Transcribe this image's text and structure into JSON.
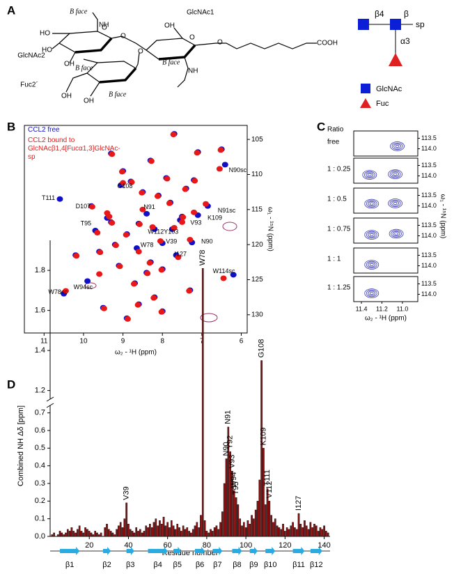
{
  "panel_labels": [
    "A",
    "B",
    "C",
    "D"
  ],
  "structure": {
    "residues": [
      "GlcNAc1",
      "GlcNAc2",
      "Fuc2´"
    ],
    "faces": [
      "B face",
      "B face",
      "B face",
      "B face"
    ],
    "atoms": [
      "HO",
      "HO",
      "OH",
      "OH",
      "OH",
      "OH",
      "O",
      "O",
      "O",
      "O",
      "O",
      "NH",
      "NH",
      "COOH"
    ]
  },
  "glycan": {
    "links": [
      "β4",
      "β",
      "α3"
    ],
    "spacer": "sp",
    "legend": [
      "GlcNAc",
      "Fuc"
    ]
  },
  "chart_data": [
    {
      "type": "scatter",
      "xlabel": "ω₂ - ¹H (ppm)",
      "ylabel": "ω₁ - ¹⁵N (ppm)",
      "xlim": [
        11.5,
        5.85
      ],
      "ylim": [
        103,
        132.6
      ],
      "xticks": [
        11,
        10,
        9,
        8,
        7,
        6
      ],
      "yticks": [
        105,
        110,
        115,
        120,
        125,
        130
      ],
      "series": [
        {
          "name": "CCL2 free",
          "color": "#1010c8",
          "x": [
            7.7,
            7.1,
            6.5,
            6.41,
            10.6,
            9.05,
            8.4,
            6.85,
            7.1,
            7.55,
            8.2,
            7.75,
            7.25,
            9.4,
            9.7,
            8.65,
            8.0,
            7.65,
            6.2,
            9.9,
            10.5,
            9.3,
            9.0,
            8.8,
            8.5,
            8.3,
            8.1,
            7.9,
            7.4,
            7.2,
            9.6,
            9.2,
            8.9,
            8.6,
            8.3,
            8.0,
            7.8,
            9.1,
            8.7,
            8.4,
            8.2,
            9.5,
            7.3,
            8.9,
            10.2,
            9.8,
            8.6,
            8.0,
            7.5,
            9.3
          ],
          "values": [
            104.2,
            106.8,
            106.4,
            108.6,
            113.5,
            111.5,
            115.6,
            114.5,
            115.8,
            116.5,
            117.8,
            117.8,
            119.7,
            116.2,
            118.0,
            120.5,
            119.8,
            121.5,
            124.3,
            125.2,
            127.0,
            107.0,
            109.5,
            111.0,
            112.5,
            108.0,
            113.0,
            110.5,
            112.0,
            110.8,
            121.0,
            120.0,
            118.5,
            117.0,
            122.5,
            123.5,
            114.0,
            123.0,
            125.5,
            124.0,
            127.5,
            129.0,
            126.5,
            130.5,
            121.5,
            114.5,
            128.5,
            129.5,
            116.0,
            116.8
          ]
        },
        {
          "name": "CCL2 bound to GlcNAcβ1,4[Fucα1,3]GlcNAc-sp",
          "color": "#e81818",
          "x": [
            7.72,
            7.12,
            6.52,
            6.55,
            9.4,
            9.0,
            8.5,
            6.9,
            7.2,
            7.5,
            8.25,
            7.7,
            7.3,
            9.35,
            9.65,
            8.6,
            8.05,
            7.6,
            6.45,
            9.6,
            10.45,
            9.28,
            9.02,
            8.78,
            8.52,
            8.28,
            8.12,
            7.88,
            7.42,
            7.18,
            9.58,
            9.18,
            8.92,
            8.58,
            8.32,
            8.02,
            7.82,
            9.08,
            8.72,
            8.38,
            8.22,
            9.48,
            7.32,
            8.88,
            10.18,
            9.78,
            8.62,
            8.02,
            7.48,
            9.28
          ],
          "values": [
            104.3,
            106.9,
            106.5,
            109.2,
            115.5,
            111.2,
            115.0,
            114.2,
            115.4,
            116.8,
            117.5,
            117.6,
            119.3,
            116.0,
            118.3,
            121.0,
            119.5,
            121.8,
            124.8,
            124.2,
            126.6,
            107.1,
            109.6,
            111.1,
            112.6,
            108.1,
            113.1,
            110.6,
            112.1,
            110.9,
            121.1,
            120.1,
            118.6,
            117.1,
            122.6,
            123.6,
            114.1,
            123.1,
            125.6,
            124.1,
            127.6,
            129.1,
            126.6,
            130.6,
            121.6,
            114.6,
            128.6,
            129.6,
            116.1,
            116.9
          ]
        }
      ],
      "annotations": [
        {
          "text": "N90sc",
          "x": 6.09,
          "y": 109.4
        },
        {
          "text": "T111",
          "x": 10.89,
          "y": 113.4
        },
        {
          "text": "G108",
          "x": 8.95,
          "y": 111.7
        },
        {
          "text": "N91",
          "x": 8.33,
          "y": 114.7
        },
        {
          "text": "N91sc",
          "x": 6.37,
          "y": 115.2
        },
        {
          "text": "K109",
          "x": 6.67,
          "y": 116.2
        },
        {
          "text": "V93",
          "x": 7.15,
          "y": 116.9
        },
        {
          "text": "W112Y103",
          "x": 7.98,
          "y": 118.2
        },
        {
          "text": "N90",
          "x": 6.87,
          "y": 119.6
        },
        {
          "text": "D107",
          "x": 10.01,
          "y": 114.6
        },
        {
          "text": "T95",
          "x": 9.94,
          "y": 117.0
        },
        {
          "text": "W78",
          "x": 8.39,
          "y": 120.1
        },
        {
          "text": "V39",
          "x": 7.77,
          "y": 119.6
        },
        {
          "text": "I127",
          "x": 7.54,
          "y": 121.4
        },
        {
          "text": "W114sc",
          "x": 6.44,
          "y": 123.8
        },
        {
          "text": "W94sc",
          "x": 10.01,
          "y": 126.1
        },
        {
          "text": "W78sc",
          "x": 10.65,
          "y": 126.8
        }
      ]
    },
    {
      "type": "contour",
      "title": "Ratio",
      "xlabel": "ω₂ - ¹H (ppm)",
      "ylabel": "ω₁ - ¹⁵N (ppm)",
      "color": "#3434b4",
      "xlim": [
        11.475,
        10.85
      ],
      "ylim": [
        113.15,
        114.35
      ],
      "xticks": [
        11.4,
        11.2,
        {
          "value": 11,
          "label": "11.0"
        }
      ],
      "yticks": [
        113.5,
        {
          "value": 114,
          "label": "114.0"
        }
      ],
      "rows": [
        {
          "label": "free",
          "peaks": [
            {
              "x": 11.05,
              "y": 113.88
            }
          ]
        },
        {
          "label": "1 : 0.25",
          "peaks": [
            {
              "x": 11.32,
              "y": 113.95
            },
            {
              "x": 11.07,
              "y": 113.92
            }
          ]
        },
        {
          "label": "1 : 0.5",
          "peaks": [
            {
              "x": 11.3,
              "y": 113.9
            },
            {
              "x": 11.07,
              "y": 113.88
            }
          ]
        },
        {
          "label": "1 : 0.75",
          "peaks": [
            {
              "x": 11.3,
              "y": 113.95
            },
            {
              "x": 11.06,
              "y": 113.9
            }
          ]
        },
        {
          "label": "1 : 1",
          "peaks": [
            {
              "x": 11.3,
              "y": 113.95
            }
          ]
        },
        {
          "label": "1 : 1.25",
          "peaks": [
            {
              "x": 11.3,
              "y": 113.95
            }
          ]
        }
      ]
    },
    {
      "type": "bar",
      "xlabel": "Residue number",
      "ylabel": "Combined NH Δδ [ppm]",
      "color": "#8b1212",
      "xlim": [
        0,
        143
      ],
      "ylim": [
        0,
        1.95
      ],
      "y_break": [
        0.75,
        1.15
      ],
      "xticks": [
        20,
        40,
        60,
        80,
        100,
        120,
        140
      ],
      "yticks": [
        {
          "value": 0,
          "label": "0.0"
        },
        0.1,
        0.2,
        0.3,
        0.4,
        0.5,
        0.6,
        0.7,
        1.2,
        1.4,
        1.6,
        1.8
      ],
      "x": [
        1,
        2,
        3,
        4,
        5,
        6,
        7,
        8,
        9,
        10,
        11,
        12,
        13,
        14,
        15,
        16,
        17,
        18,
        19,
        20,
        21,
        22,
        23,
        24,
        25,
        26,
        27,
        28,
        29,
        30,
        31,
        32,
        33,
        34,
        35,
        36,
        37,
        38,
        39,
        40,
        41,
        42,
        43,
        44,
        45,
        46,
        47,
        48,
        49,
        50,
        51,
        52,
        53,
        54,
        55,
        56,
        57,
        58,
        59,
        60,
        61,
        62,
        63,
        64,
        65,
        66,
        67,
        68,
        69,
        70,
        71,
        72,
        73,
        74,
        75,
        76,
        77,
        78,
        79,
        80,
        81,
        82,
        83,
        84,
        85,
        86,
        87,
        88,
        89,
        90,
        91,
        92,
        93,
        94,
        95,
        96,
        97,
        98,
        99,
        100,
        101,
        102,
        103,
        104,
        105,
        106,
        107,
        108,
        109,
        110,
        111,
        112,
        113,
        114,
        115,
        116,
        117,
        118,
        119,
        120,
        121,
        122,
        123,
        124,
        125,
        126,
        127,
        128,
        129,
        130,
        131,
        132,
        133,
        134,
        135,
        136,
        137,
        138,
        139,
        140,
        141,
        142
      ],
      "values": [
        0.01,
        0.02,
        0.0,
        0.01,
        0.03,
        0.02,
        0.01,
        0.02,
        0.04,
        0.03,
        0.05,
        0.03,
        0.02,
        0.04,
        0.06,
        0.03,
        0.02,
        0.05,
        0.04,
        0.03,
        0.02,
        0.01,
        0.03,
        0.02,
        0.01,
        0.02,
        0.0,
        0.05,
        0.07,
        0.04,
        0.03,
        0.02,
        0.01,
        0.04,
        0.06,
        0.08,
        0.05,
        0.1,
        0.19,
        0.07,
        0.04,
        0.03,
        0.02,
        0.05,
        0.03,
        0.04,
        0.02,
        0.03,
        0.06,
        0.05,
        0.07,
        0.05,
        0.08,
        0.1,
        0.06,
        0.09,
        0.07,
        0.11,
        0.06,
        0.08,
        0.05,
        0.09,
        0.06,
        0.04,
        0.07,
        0.05,
        0.03,
        0.06,
        0.04,
        0.05,
        0.03,
        0.02,
        0.04,
        0.06,
        0.08,
        0.05,
        0.12,
        1.81,
        0.09,
        0.03,
        0.02,
        0.04,
        0.03,
        0.05,
        0.06,
        0.04,
        0.08,
        0.14,
        0.3,
        0.44,
        0.62,
        0.48,
        0.37,
        0.26,
        0.22,
        0.18,
        0.1,
        0.06,
        0.08,
        0.05,
        0.09,
        0.07,
        0.12,
        0.1,
        0.15,
        0.2,
        0.32,
        1.35,
        0.5,
        0.18,
        0.27,
        0.2,
        0.12,
        0.08,
        0.1,
        0.06,
        0.05,
        0.04,
        0.07,
        0.03,
        0.05,
        0.04,
        0.06,
        0.08,
        0.05,
        0.04,
        0.13,
        0.07,
        0.05,
        0.09,
        0.06,
        0.04,
        0.08,
        0.05,
        0.07,
        0.06,
        0.03,
        0.05,
        0.04,
        0.06,
        0.03,
        0.02
      ],
      "annotations": [
        {
          "text": "V39",
          "x": 39
        },
        {
          "text": "W78",
          "x": 78
        },
        {
          "text": "N90",
          "x": 90
        },
        {
          "text": "N91",
          "x": 91
        },
        {
          "text": "Y92",
          "x": 92
        },
        {
          "text": "V93",
          "x": 93
        },
        {
          "text": "W94",
          "x": 94
        },
        {
          "text": "T95",
          "x": 95
        },
        {
          "text": "G108",
          "x": 108
        },
        {
          "text": "K109",
          "x": 109
        },
        {
          "text": "T111",
          "x": 111
        },
        {
          "text": "V112",
          "x": 112
        },
        {
          "text": "I127",
          "x": 127
        }
      ],
      "strands": [
        {
          "label": "β1",
          "start": 5,
          "end": 15
        },
        {
          "label": "β2",
          "start": 27,
          "end": 31
        },
        {
          "label": "β3",
          "start": 39,
          "end": 43
        },
        {
          "label": "β4",
          "start": 50,
          "end": 60
        },
        {
          "label": "β5",
          "start": 63,
          "end": 67
        },
        {
          "label": "β6",
          "start": 74,
          "end": 79
        },
        {
          "label": "β7",
          "start": 83,
          "end": 88
        },
        {
          "label": "β8",
          "start": 93,
          "end": 98
        },
        {
          "label": "β9",
          "start": 102,
          "end": 106
        },
        {
          "label": "β10",
          "start": 110,
          "end": 115
        },
        {
          "label": "β11",
          "start": 124,
          "end": 130
        },
        {
          "label": "β12",
          "start": 133,
          "end": 139
        }
      ]
    }
  ]
}
